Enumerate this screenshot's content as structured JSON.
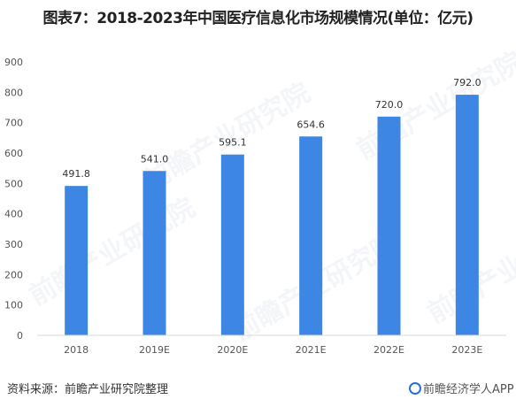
{
  "title": "图表7：2018-2023年中国医疗信息化市场规模情况(单位：亿元)",
  "source": "资料来源：前瞻产业研究院整理",
  "brand": "前瞻经济学人APP",
  "watermark": "前瞻产业研究院",
  "bar_color": "#3d86e4",
  "chart_data": {
    "type": "bar",
    "categories": [
      "2018",
      "2019E",
      "2020E",
      "2021E",
      "2022E",
      "2023E"
    ],
    "values": [
      491.8,
      541.0,
      595.1,
      654.6,
      720.0,
      792.0
    ],
    "value_labels": [
      "491.8",
      "541.0",
      "595.1",
      "654.6",
      "720.0",
      "792.0"
    ],
    "ylim": [
      0,
      900
    ],
    "yticks": [
      0,
      100,
      200,
      300,
      400,
      500,
      600,
      700,
      800,
      900
    ],
    "grid": false,
    "legend": "none"
  }
}
